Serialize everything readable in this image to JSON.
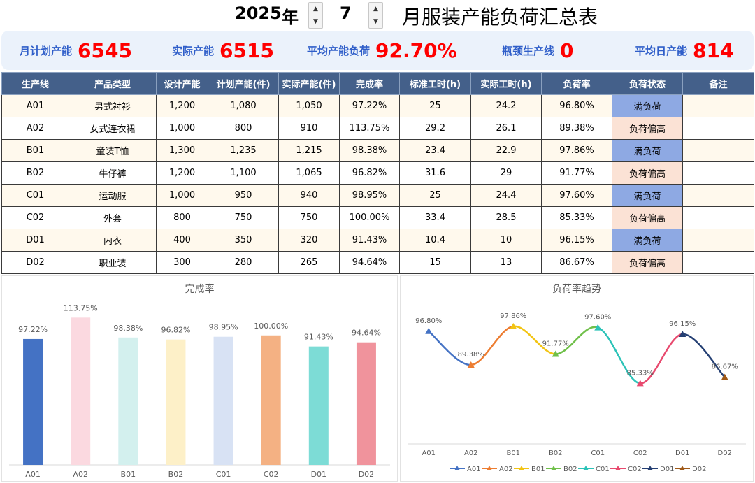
{
  "header": {
    "year": "2025",
    "year_unit": "年",
    "month": "7",
    "title": "月服装产能负荷汇总表",
    "spin_up": "▲",
    "spin_down": "▼"
  },
  "kpis": [
    {
      "label": "月计划产能",
      "value": "6545"
    },
    {
      "label": "实际产能",
      "value": "6515"
    },
    {
      "label": "平均产能负荷",
      "value": "92.70%"
    },
    {
      "label": "瓶颈生产线",
      "value": "0"
    },
    {
      "label": "平均日产能",
      "value": "814"
    }
  ],
  "table": {
    "headers": [
      "生产线",
      "产品类型",
      "设计产能",
      "计划产能(件)",
      "实际产能(件)",
      "完成率",
      "标准工时(h)",
      "实际工时(h)",
      "负荷率",
      "负荷状态",
      "备注"
    ],
    "rows": [
      [
        "A01",
        "男式衬衫",
        "1,200",
        "1,080",
        "1,050",
        "97.22%",
        "25",
        "24.2",
        "96.80%",
        "满负荷",
        ""
      ],
      [
        "A02",
        "女式连衣裙",
        "1,000",
        "800",
        "910",
        "113.75%",
        "29.2",
        "26.1",
        "89.38%",
        "负荷偏高",
        ""
      ],
      [
        "B01",
        "童装T恤",
        "1,300",
        "1,235",
        "1,215",
        "98.38%",
        "23.4",
        "22.9",
        "97.86%",
        "满负荷",
        ""
      ],
      [
        "B02",
        "牛仔裤",
        "1,200",
        "1,100",
        "1,065",
        "96.82%",
        "31.6",
        "29",
        "91.77%",
        "负荷偏高",
        ""
      ],
      [
        "C01",
        "运动服",
        "1,000",
        "950",
        "940",
        "98.95%",
        "25",
        "24.4",
        "97.60%",
        "满负荷",
        ""
      ],
      [
        "C02",
        "外套",
        "800",
        "750",
        "750",
        "100.00%",
        "33.4",
        "28.5",
        "85.33%",
        "负荷偏高",
        ""
      ],
      [
        "D01",
        "内衣",
        "400",
        "350",
        "320",
        "91.43%",
        "10.4",
        "10",
        "96.15%",
        "满负荷",
        ""
      ],
      [
        "D02",
        "职业装",
        "300",
        "280",
        "265",
        "94.64%",
        "15",
        "13",
        "86.67%",
        "负荷偏高",
        ""
      ]
    ],
    "status_colors": {
      "满负荷": "#8ea9e3",
      "负荷偏高": "#fbe2d5"
    }
  },
  "chart_data": [
    {
      "type": "bar",
      "title": "完成率",
      "categories": [
        "A01",
        "A02",
        "B01",
        "B02",
        "C01",
        "C02",
        "D01",
        "D02"
      ],
      "values": [
        97.22,
        113.75,
        98.38,
        96.82,
        98.95,
        100.0,
        91.43,
        94.64
      ],
      "value_labels": [
        "97.22%",
        "113.75%",
        "98.38%",
        "96.82%",
        "98.95%",
        "100.00%",
        "91.43%",
        "94.64%"
      ],
      "colors": [
        "#4472c4",
        "#fbd9e0",
        "#d3f0ee",
        "#fdf0c8",
        "#d8e2f4",
        "#f4b183",
        "#7ddcd6",
        "#f0939c"
      ],
      "ylim": [
        0,
        115
      ],
      "grid": false
    },
    {
      "type": "line",
      "title": "负荷率趋势",
      "categories": [
        "A01",
        "A02",
        "B01",
        "B02",
        "C01",
        "C02",
        "D01",
        "D02"
      ],
      "values": [
        96.8,
        89.38,
        97.86,
        91.77,
        97.6,
        85.33,
        96.15,
        86.67
      ],
      "value_labels": [
        "96.80%",
        "89.38%",
        "97.86%",
        "91.77%",
        "97.60%",
        "85.33%",
        "96.15%",
        "86.67%"
      ],
      "series_names": [
        "A01",
        "A02",
        "B01",
        "B02",
        "C01",
        "C02",
        "D01",
        "D02"
      ],
      "segment_colors": [
        "#4472c4",
        "#ed7d31",
        "#f2c414",
        "#70c04a",
        "#2cc3b8",
        "#e8496e",
        "#243f73",
        "#a05a18"
      ],
      "ylim": [
        80,
        100
      ],
      "legend": "bottom",
      "smooth": true
    }
  ]
}
